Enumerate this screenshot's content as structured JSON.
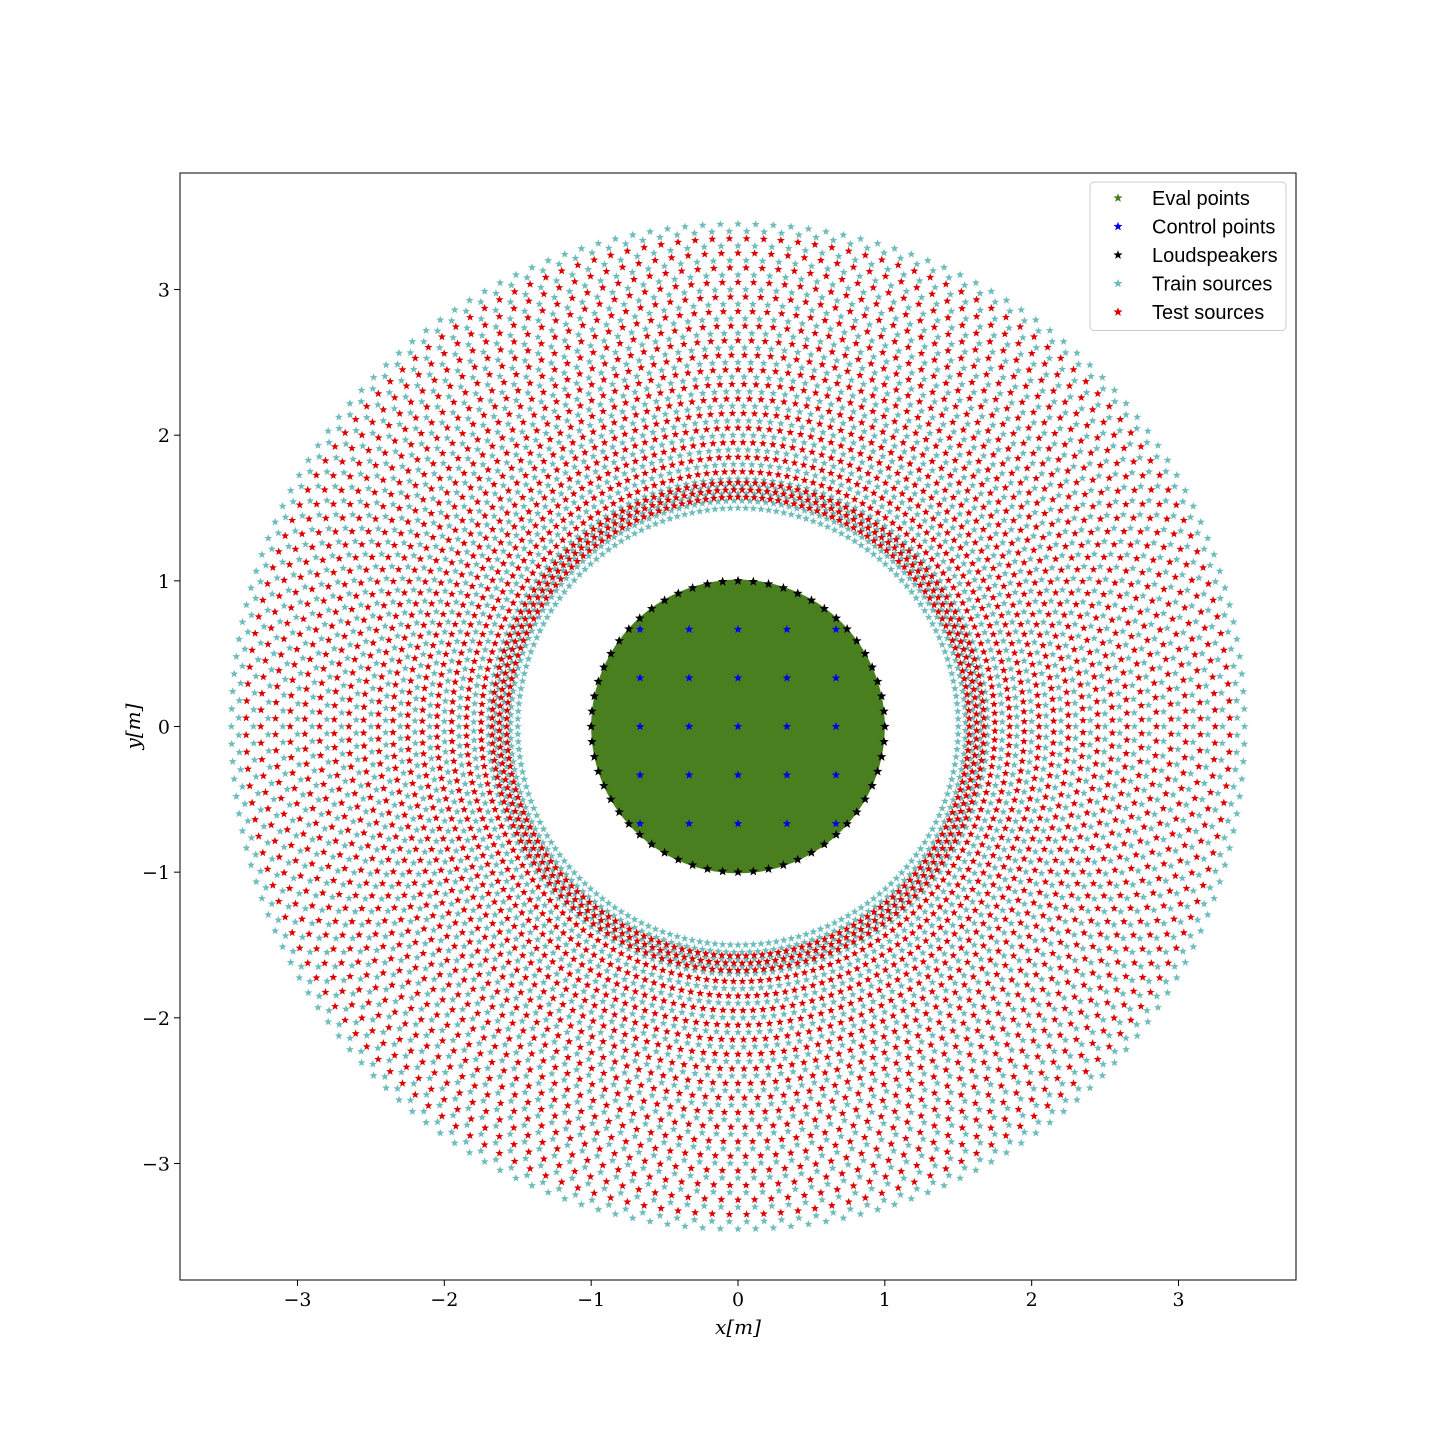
{
  "chart_data": {
    "type": "scatter",
    "xlabel": "x[m]",
    "ylabel": "y[m]",
    "xlim": [
      -3.8,
      3.8
    ],
    "ylim": [
      -3.8,
      3.8
    ],
    "x_ticks": [
      -3,
      -2,
      -1,
      0,
      1,
      2,
      3
    ],
    "y_ticks": [
      -3,
      -2,
      -1,
      0,
      1,
      2,
      3
    ],
    "x_tick_labels": [
      "−3",
      "−2",
      "−1",
      "0",
      "1",
      "2",
      "3"
    ],
    "y_tick_labels": [
      "−3",
      "−2",
      "−1",
      "0",
      "1",
      "2",
      "3"
    ],
    "grid": false,
    "legend_position": "top-right",
    "marker": "star",
    "series": [
      {
        "name": "Eval points",
        "color": "#4a7f1f",
        "description_region": {
          "shape": "filled-disk",
          "center": [
            0,
            0
          ],
          "radius": 1.0
        }
      },
      {
        "name": "Control points",
        "color": "#0000ee",
        "grid_axis_values": [
          -0.667,
          -0.333,
          0,
          0.333,
          0.667
        ],
        "within_radius": 1.0
      },
      {
        "name": "Loudspeakers",
        "color": "#000000",
        "ring": {
          "center": [
            0,
            0
          ],
          "radius": 1.0,
          "count": 60
        }
      },
      {
        "name": "Train sources",
        "color": "#6fbcbc",
        "radii": [
          1.5,
          1.55,
          1.6,
          1.65,
          1.7,
          1.8,
          1.9,
          2.0,
          2.1,
          2.2,
          2.3,
          2.4,
          2.5,
          2.6,
          2.7,
          2.8,
          2.9,
          3.0,
          3.1,
          3.2,
          3.3,
          3.4,
          3.45
        ],
        "points_per_ring": 180,
        "radial_step_deg": 2
      },
      {
        "name": "Test sources",
        "color": "#dd0000",
        "radii": [
          1.575,
          1.625,
          1.675,
          1.75,
          1.85,
          1.95,
          2.05,
          2.15,
          2.25,
          2.35,
          2.45,
          2.55,
          2.65,
          2.75,
          2.85,
          2.95,
          3.05,
          3.15,
          3.25,
          3.35
        ],
        "points_per_ring": 180,
        "radial_step_deg": 2
      }
    ]
  }
}
